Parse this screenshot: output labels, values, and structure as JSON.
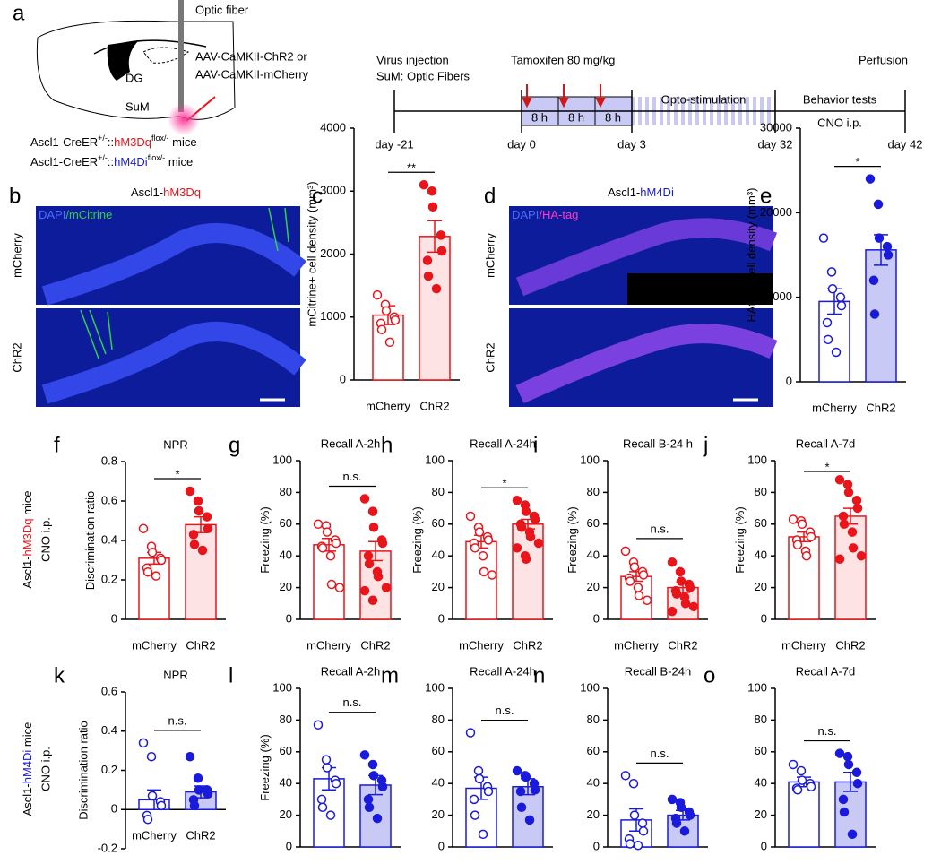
{
  "panel_a": {
    "letter": "a",
    "optic_fiber": "Optic fiber",
    "virus": [
      "AAV-CaMKII-ChR2 or",
      "AAV-CaMKII-mCherry"
    ],
    "dg": "DG",
    "sum": "SuM",
    "genotypes": [
      [
        "Ascl1-CreER",
        "+/-",
        "::",
        "hM3Dq",
        "flox/-",
        " mice"
      ],
      [
        "Ascl1-CreER",
        "+/-",
        "::",
        "hM4Di",
        "flox/-",
        " mice"
      ]
    ],
    "timeline": {
      "virus_injection": "Virus injection",
      "optic_fibers": "SuM: Optic Fibers",
      "tamoxifen": "Tamoxifen 80 mg/kg",
      "perfusion": "Perfusion",
      "intervals": [
        "8 h",
        "8 h",
        "8 h"
      ],
      "opto": "Opto-stimulation",
      "behavior": "Behavior tests",
      "cno": "CNO i.p.",
      "days": [
        "day -21",
        "day 0",
        "day 3",
        "day 32",
        "day 42"
      ]
    }
  },
  "panel_b": {
    "letter": "b",
    "title": [
      "Ascl1-",
      "hM3Dq"
    ],
    "stain": [
      "DAPI",
      "/mCitrine"
    ],
    "rows": [
      "mCherry",
      "ChR2"
    ]
  },
  "panel_d": {
    "letter": "d",
    "title": [
      "Ascl1-",
      "hM4Di"
    ],
    "stain": [
      "DAPI",
      "/HA-tag"
    ],
    "rows": [
      "mCherry",
      "ChR2"
    ]
  },
  "row_labels": [
    {
      "parts": [
        "Ascl1-",
        "hM3Dq",
        " mice"
      ],
      "sub": "CNO i.p."
    },
    {
      "parts": [
        "Ascl1-",
        "hM4Di",
        " mice"
      ],
      "sub": "CNO i.p."
    }
  ],
  "chart_data": [
    {
      "type": "bar",
      "panel": "c",
      "ylabel": "mCitrine+ cell density (mm³)",
      "categories": [
        "mCherry",
        "ChR2"
      ],
      "values": [
        1030,
        2280
      ],
      "errors": [
        150,
        250
      ],
      "points": [
        [
          1350,
          1200,
          1100,
          1000,
          950,
          900,
          800,
          600
        ],
        [
          3100,
          3000,
          2750,
          2300,
          2050,
          1900,
          1650,
          1450
        ]
      ],
      "significance": "**",
      "color": "#e8151b",
      "bar_fills": [
        "#ffffff",
        "#fde3e3"
      ],
      "point_fills": [
        "#ffffff",
        "#e8151b"
      ],
      "ylim": [
        0,
        4000
      ],
      "yticks": [
        0,
        1000,
        2000,
        3000,
        4000
      ]
    },
    {
      "type": "bar",
      "panel": "e",
      "ylabel": "HAtag+ cell density (mm³)",
      "categories": [
        "mCherry",
        "ChR2"
      ],
      "values": [
        9500,
        15600
      ],
      "errors": [
        1500,
        1800
      ],
      "points": [
        [
          17000,
          13000,
          11000,
          10000,
          9000,
          7000,
          5000,
          3500
        ],
        [
          24000,
          21000,
          17000,
          16000,
          15000,
          12000,
          8000
        ]
      ],
      "significance": "*",
      "color": "#1a1adc",
      "bar_fills": [
        "#ffffff",
        "#c9c9f5"
      ],
      "point_fills": [
        "#ffffff",
        "#1a1adc"
      ],
      "ylim": [
        0,
        30000
      ],
      "yticks": [
        0,
        10000,
        20000,
        30000
      ]
    },
    {
      "type": "bar",
      "panel": "f",
      "title": "NPR",
      "ylabel": "Discrimination ratio",
      "categories": [
        "mCherry",
        "ChR2"
      ],
      "values": [
        0.31,
        0.48
      ],
      "errors": [
        0.03,
        0.04
      ],
      "points": [
        [
          0.46,
          0.37,
          0.34,
          0.31,
          0.3,
          0.26,
          0.24,
          0.22
        ],
        [
          0.65,
          0.6,
          0.55,
          0.52,
          0.46,
          0.43,
          0.38,
          0.35
        ]
      ],
      "significance": "*",
      "color": "#e8151b",
      "bar_fills": [
        "#ffffff",
        "#fde3e3"
      ],
      "point_fills": [
        "#ffffff",
        "#e8151b"
      ],
      "ylim": [
        0,
        0.8
      ],
      "yticks": [
        0,
        0.2,
        0.4,
        0.6,
        0.8
      ]
    },
    {
      "type": "bar",
      "panel": "g",
      "title": "Recall A-2h",
      "ylabel": "Freezing (%)",
      "categories": [
        "mCherry",
        "ChR2"
      ],
      "values": [
        47,
        43
      ],
      "errors": [
        4,
        6
      ],
      "points": [
        [
          60,
          59,
          55,
          50,
          48,
          46,
          45,
          40,
          22,
          20
        ],
        [
          76,
          68,
          58,
          50,
          48,
          40,
          35,
          30,
          27,
          20,
          18,
          12
        ]
      ],
      "significance": "n.s.",
      "color": "#e8151b",
      "bar_fills": [
        "#ffffff",
        "#fde3e3"
      ],
      "point_fills": [
        "#ffffff",
        "#e8151b"
      ],
      "ylim": [
        0,
        100
      ],
      "yticks": [
        0,
        20,
        40,
        60,
        80,
        100
      ]
    },
    {
      "type": "bar",
      "panel": "h",
      "title": "Recall A-24h",
      "ylabel": "Freezing (%)",
      "categories": [
        "mCherry",
        "ChR2"
      ],
      "values": [
        49,
        60
      ],
      "errors": [
        4,
        3
      ],
      "points": [
        [
          65,
          58,
          55,
          52,
          50,
          48,
          45,
          40,
          30,
          28
        ],
        [
          75,
          72,
          68,
          65,
          63,
          60,
          58,
          55,
          52,
          48,
          45,
          40,
          38
        ]
      ],
      "significance": "*",
      "color": "#e8151b",
      "bar_fills": [
        "#ffffff",
        "#fde3e3"
      ],
      "point_fills": [
        "#ffffff",
        "#e8151b"
      ],
      "ylim": [
        0,
        100
      ],
      "yticks": [
        0,
        20,
        40,
        60,
        80,
        100
      ]
    },
    {
      "type": "bar",
      "panel": "i",
      "title": "Recall B-24 h",
      "ylabel": "Freezing (%)",
      "categories": [
        "mCherry",
        "ChR2"
      ],
      "values": [
        27,
        20
      ],
      "errors": [
        3,
        3
      ],
      "points": [
        [
          43,
          36,
          33,
          30,
          28,
          26,
          24,
          20,
          15,
          12
        ],
        [
          36,
          30,
          24,
          22,
          20,
          18,
          16,
          14,
          10,
          8,
          5
        ]
      ],
      "significance": "n.s.",
      "color": "#e8151b",
      "bar_fills": [
        "#ffffff",
        "#fde3e3"
      ],
      "point_fills": [
        "#ffffff",
        "#e8151b"
      ],
      "ylim": [
        0,
        100
      ],
      "yticks": [
        0,
        20,
        40,
        60,
        80,
        100
      ]
    },
    {
      "type": "bar",
      "panel": "j",
      "title": "Recall A-7d",
      "ylabel": "Freezing (%)",
      "categories": [
        "mCherry",
        "ChR2"
      ],
      "values": [
        52,
        65
      ],
      "errors": [
        3,
        5
      ],
      "points": [
        [
          63,
          62,
          60,
          55,
          52,
          50,
          47,
          43,
          40
        ],
        [
          88,
          85,
          80,
          75,
          70,
          65,
          60,
          55,
          45,
          40,
          38
        ]
      ],
      "significance": "*",
      "color": "#e8151b",
      "bar_fills": [
        "#ffffff",
        "#fde3e3"
      ],
      "point_fills": [
        "#ffffff",
        "#e8151b"
      ],
      "ylim": [
        0,
        100
      ],
      "yticks": [
        0,
        20,
        40,
        60,
        80,
        100
      ]
    },
    {
      "type": "bar",
      "panel": "k",
      "title": "NPR",
      "ylabel": "Discrimination ratio",
      "categories": [
        "mCherry",
        "ChR2"
      ],
      "values": [
        0.05,
        0.09
      ],
      "errors": [
        0.05,
        0.03
      ],
      "points": [
        [
          0.34,
          0.27,
          0.07,
          0.04,
          0.02,
          -0.03,
          -0.05
        ],
        [
          0.27,
          0.16,
          0.1,
          0.1,
          0.08,
          0.05,
          0.02
        ]
      ],
      "significance": "n.s.",
      "color": "#1a1adc",
      "bar_fills": [
        "#ffffff",
        "#c9c9f5"
      ],
      "point_fills": [
        "#ffffff",
        "#1a1adc"
      ],
      "ylim": [
        -0.2,
        0.6
      ],
      "yticks": [
        -0.2,
        0,
        0.2,
        0.4,
        0.6
      ]
    },
    {
      "type": "bar",
      "panel": "l",
      "title": "Recall A-2h",
      "ylabel": "Freezing (%)",
      "categories": [
        "mCherry",
        "ChR2"
      ],
      "values": [
        43,
        39
      ],
      "errors": [
        7,
        6
      ],
      "points": [
        [
          77,
          55,
          50,
          42,
          40,
          30,
          25,
          20
        ],
        [
          58,
          52,
          45,
          42,
          38,
          30,
          25,
          18
        ]
      ],
      "significance": "n.s.",
      "color": "#1a1adc",
      "bar_fills": [
        "#ffffff",
        "#c9c9f5"
      ],
      "point_fills": [
        "#ffffff",
        "#1a1adc"
      ],
      "ylim": [
        0,
        100
      ],
      "yticks": [
        0,
        20,
        40,
        60,
        80,
        100
      ]
    },
    {
      "type": "bar",
      "panel": "m",
      "title": "Recall A-24h",
      "categories": [
        "mCherry",
        "ChR2"
      ],
      "values": [
        37,
        38
      ],
      "errors": [
        7,
        5
      ],
      "points": [
        [
          72,
          48,
          43,
          38,
          35,
          30,
          20,
          8
        ],
        [
          48,
          45,
          44,
          40,
          36,
          35,
          25,
          17
        ]
      ],
      "significance": "n.s.",
      "color": "#1a1adc",
      "bar_fills": [
        "#ffffff",
        "#c9c9f5"
      ],
      "point_fills": [
        "#ffffff",
        "#1a1adc"
      ],
      "ylim": [
        0,
        100
      ],
      "yticks": [
        0,
        20,
        40,
        60,
        80,
        100
      ]
    },
    {
      "type": "bar",
      "panel": "n",
      "title": "Recall B-24h",
      "categories": [
        "mCherry",
        "ChR2"
      ],
      "values": [
        17,
        20
      ],
      "errors": [
        7,
        3
      ],
      "points": [
        [
          45,
          40,
          20,
          15,
          10,
          5,
          2,
          1
        ],
        [
          30,
          28,
          25,
          22,
          20,
          18,
          15,
          10
        ]
      ],
      "significance": "n.s.",
      "color": "#1a1adc",
      "bar_fills": [
        "#ffffff",
        "#c9c9f5"
      ],
      "point_fills": [
        "#ffffff",
        "#1a1adc"
      ],
      "ylim": [
        0,
        100
      ],
      "yticks": [
        0,
        20,
        40,
        60,
        80,
        100
      ]
    },
    {
      "type": "bar",
      "panel": "o",
      "title": "Recall A-7d",
      "categories": [
        "mCherry",
        "ChR2"
      ],
      "values": [
        41,
        41
      ],
      "errors": [
        3,
        6
      ],
      "points": [
        [
          52,
          48,
          42,
          40,
          38,
          37,
          36
        ],
        [
          59,
          57,
          52,
          47,
          40,
          30,
          22,
          8
        ]
      ],
      "significance": "n.s.",
      "color": "#1a1adc",
      "bar_fills": [
        "#ffffff",
        "#c9c9f5"
      ],
      "point_fills": [
        "#ffffff",
        "#1a1adc"
      ],
      "ylim": [
        0,
        100
      ],
      "yticks": [
        0,
        20,
        40,
        60,
        80,
        100
      ]
    }
  ]
}
